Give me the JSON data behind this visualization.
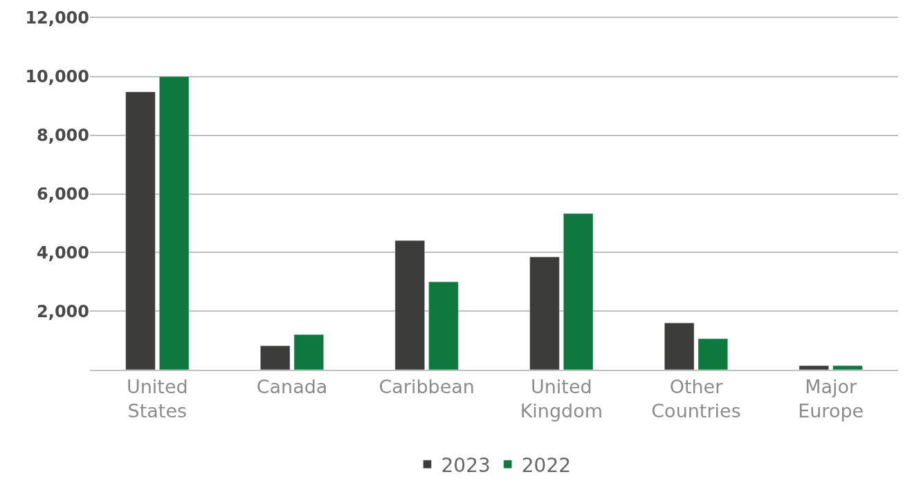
{
  "chart_data": {
    "type": "bar",
    "categories": [
      "United States",
      "Canada",
      "Caribbean",
      "United Kingdom",
      "Other Countries",
      "Major Europe"
    ],
    "series": [
      {
        "name": "2023",
        "color": "#3c3c3b",
        "values": [
          9480,
          820,
          4410,
          3850,
          1600,
          140
        ]
      },
      {
        "name": "2022",
        "color": "#0f783f",
        "values": [
          10000,
          1200,
          3000,
          5330,
          1060,
          140
        ]
      }
    ],
    "ylim": [
      0,
      12000
    ],
    "yticks": [
      {
        "value": 0,
        "label": null
      },
      {
        "value": 2000,
        "label": "2,000"
      },
      {
        "value": 4000,
        "label": "4,000"
      },
      {
        "value": 6000,
        "label": "6,000"
      },
      {
        "value": 8000,
        "label": "8,000"
      },
      {
        "value": 10000,
        "label": "10,000"
      },
      {
        "value": 12000,
        "label": "12,000"
      }
    ],
    "grid": "y",
    "legend": "bottom"
  }
}
